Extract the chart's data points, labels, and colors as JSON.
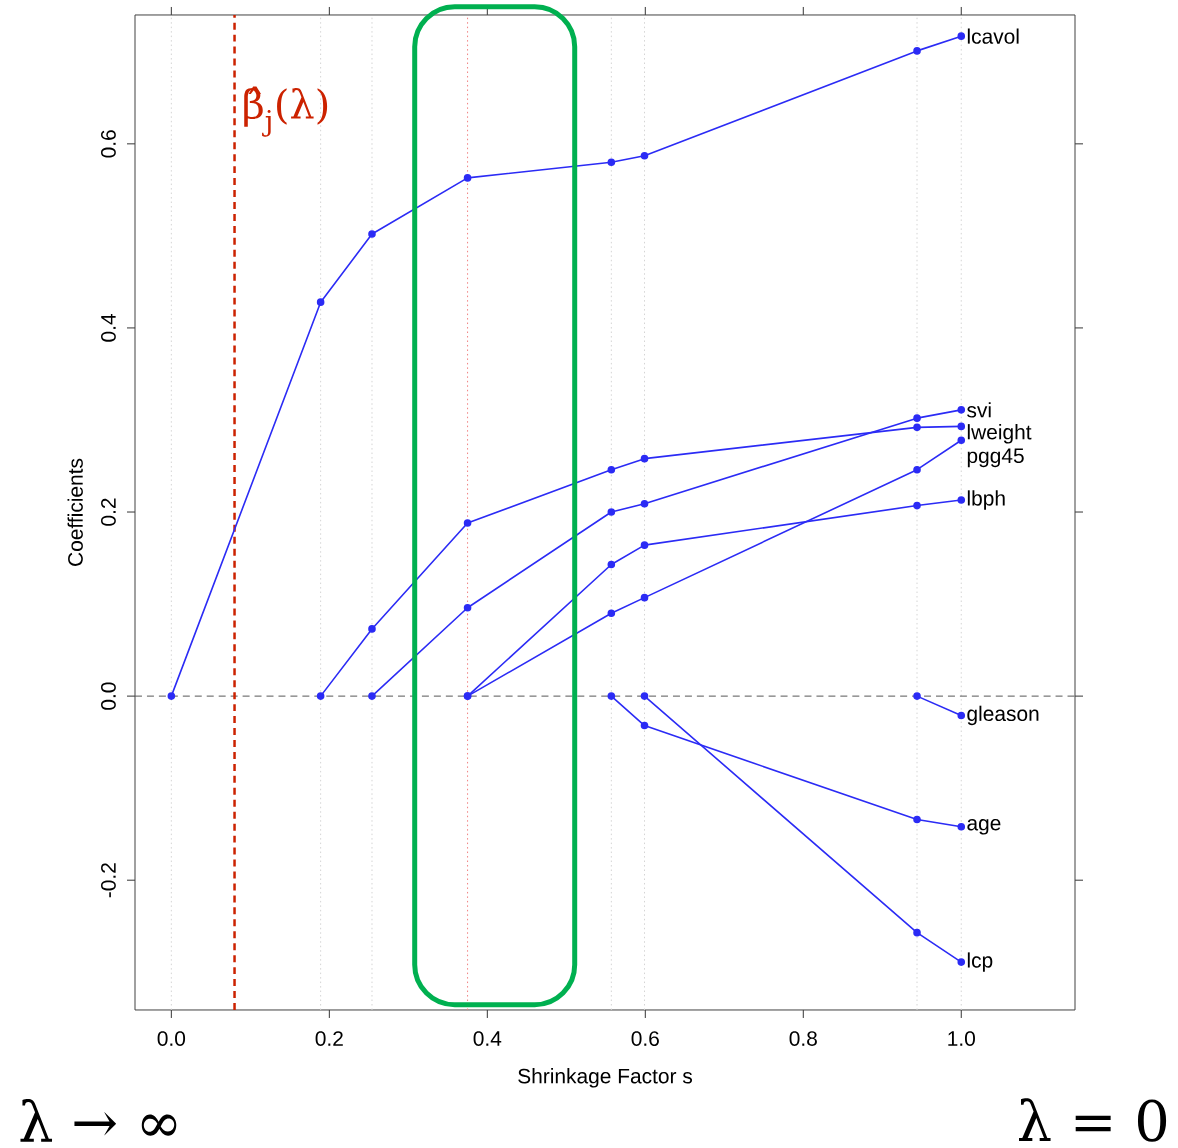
{
  "chart_data": {
    "type": "line",
    "xlabel": "Shrinkage Factor s",
    "ylabel": "Coefficients",
    "x": [
      0,
      0.189,
      0.254,
      0.375,
      0.557,
      0.599,
      0.944,
      1.0
    ],
    "series": [
      {
        "name": "lcavol",
        "color": "#2b2bf5",
        "values": [
          0,
          0.428,
          0.502,
          0.563,
          0.58,
          0.587,
          0.701,
          0.717
        ]
      },
      {
        "name": "svi",
        "color": "#2b2bf5",
        "values": [
          null,
          null,
          0,
          0.096,
          0.2,
          0.209,
          0.302,
          0.311
        ]
      },
      {
        "name": "lweight",
        "color": "#2b2bf5",
        "values": [
          null,
          0,
          0.073,
          0.188,
          0.246,
          0.258,
          0.292,
          0.293
        ]
      },
      {
        "name": "pgg45",
        "color": "#2b2bf5",
        "values": [
          null,
          null,
          null,
          0,
          0.09,
          0.107,
          0.246,
          0.278
        ]
      },
      {
        "name": "lbph",
        "color": "#2b2bf5",
        "values": [
          null,
          null,
          null,
          0,
          0.143,
          0.164,
          0.207,
          0.213
        ]
      },
      {
        "name": "gleason",
        "color": "#2b2bf5",
        "values": [
          null,
          null,
          null,
          null,
          null,
          null,
          0,
          -0.021
        ]
      },
      {
        "name": "age",
        "color": "#2b2bf5",
        "values": [
          null,
          null,
          null,
          null,
          0,
          -0.032,
          -0.134,
          -0.142
        ]
      },
      {
        "name": "lcp",
        "color": "#2b2bf5",
        "values": [
          null,
          null,
          null,
          null,
          null,
          0,
          -0.257,
          -0.289
        ]
      }
    ],
    "marker": "circle",
    "line_style": "solid",
    "grid": false,
    "xlim": [
      -0.046,
      1.144
    ],
    "ylim": [
      -0.341,
      0.74
    ],
    "xticks": [
      {
        "value": 0,
        "label": "0.0"
      },
      {
        "value": 0.2,
        "label": "0.2"
      },
      {
        "value": 0.4,
        "label": "0.4"
      },
      {
        "value": 0.6,
        "label": "0.6"
      },
      {
        "value": 0.8,
        "label": "0.8"
      },
      {
        "value": 1.0,
        "label": "1.0"
      }
    ],
    "yticks": [
      {
        "value": -0.2,
        "label": "-0.2"
      },
      {
        "value": 0,
        "label": "0.0"
      },
      {
        "value": 0.2,
        "label": "0.2"
      },
      {
        "value": 0.4,
        "label": "0.4"
      },
      {
        "value": 0.6,
        "label": "0.6"
      }
    ],
    "ref_lines": [
      {
        "axis": "x",
        "value": 0,
        "color": "#d4d4d4",
        "line_style": "dotted"
      },
      {
        "axis": "x",
        "value": 0.189,
        "color": "#d4d4d4",
        "line_style": "dotted"
      },
      {
        "axis": "x",
        "value": 0.254,
        "color": "#d4d4d4",
        "line_style": "dotted"
      },
      {
        "axis": "x",
        "value": 0.557,
        "color": "#d4d4d4",
        "line_style": "dotted"
      },
      {
        "axis": "x",
        "value": 0.599,
        "color": "#d4d4d4",
        "line_style": "dotted"
      },
      {
        "axis": "x",
        "value": 0.944,
        "color": "#d4d4d4",
        "line_style": "dotted"
      },
      {
        "axis": "x",
        "value": 1.0,
        "color": "#d4d4d4",
        "line_style": "dotted"
      },
      {
        "axis": "x",
        "value": 0.375,
        "color": "#f08080",
        "line_style": "dotted"
      },
      {
        "axis": "y",
        "value": 0,
        "color": "#555555",
        "line_style": "dashed"
      },
      {
        "axis": "x",
        "value": 0.08,
        "color": "#cc2200",
        "line_style": "dashed",
        "label": "β̂$_{j}$(λ)"
      }
    ],
    "annotations": [
      "λ → ∞",
      "λ = 0"
    ]
  }
}
